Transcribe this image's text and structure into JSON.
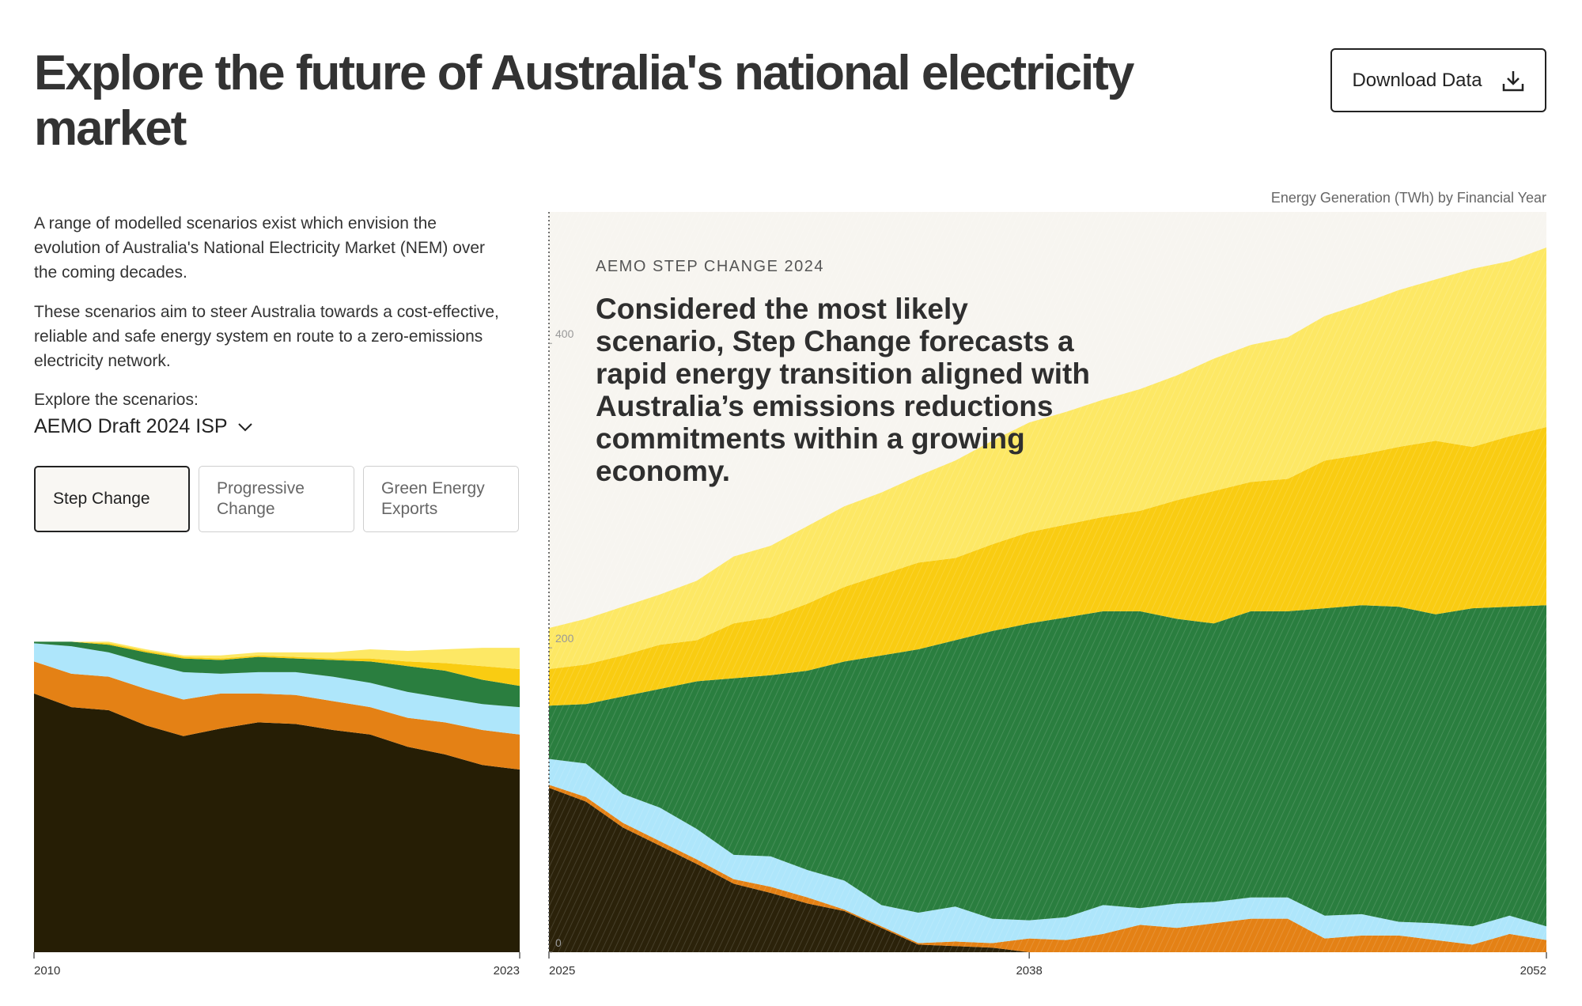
{
  "header": {
    "title": "Explore the future of Australia's national electricity market",
    "button": "Download Data"
  },
  "intro": {
    "paragraphs": [
      "A range of modelled scenarios exist which envision the evolution of Australia's National Electricity Market (NEM) over the coming decades.",
      "These scenarios aim to steer Australia towards a cost-effective, reliable and safe energy system en route to a zero-emissions electricity network."
    ],
    "prompt": "Explore the scenarios:",
    "dropdown": "AEMO Draft 2024 ISP"
  },
  "scenarios": [
    "Step Change",
    "Progressive Change",
    "Green Energy Exports"
  ],
  "chart_data": [
    {
      "type": "stacked_area",
      "x": [
        2010,
        2011,
        2012,
        2013,
        2014,
        2015,
        2016,
        2017,
        2018,
        2019,
        2020,
        2021,
        2022,
        2023
      ],
      "xlim": [
        2010,
        2023
      ],
      "xticks": [
        2010,
        2023
      ],
      "ylim": [
        0,
        490
      ],
      "series": [
        {
          "color": "#261e05",
          "values": [
            170,
            161,
            159,
            149,
            142,
            147,
            151,
            150,
            146,
            143,
            135,
            130,
            123,
            120
          ]
        },
        {
          "color": "#e48115",
          "values": [
            21,
            22,
            22,
            24,
            24,
            23,
            19,
            19,
            19,
            18,
            19,
            21,
            23,
            23
          ]
        },
        {
          "color": "#aee6fb",
          "values": [
            12,
            18,
            16,
            17,
            18,
            13,
            14,
            15,
            16,
            16,
            17,
            16,
            17,
            18
          ]
        },
        {
          "color": "#2a7e3f",
          "values": [
            1,
            3,
            5,
            7,
            9,
            9,
            10,
            9,
            11,
            14,
            17,
            18,
            16,
            14
          ]
        },
        {
          "color": "#f9cc12",
          "values": [
            0,
            0,
            1,
            1,
            1,
            1,
            1,
            1,
            1,
            2,
            3,
            5,
            9,
            11
          ]
        },
        {
          "color": "#fde865",
          "values": [
            0,
            0,
            1,
            1,
            1,
            2,
            2,
            3,
            4,
            6,
            7,
            9,
            12,
            14
          ]
        }
      ]
    },
    {
      "type": "stacked_area",
      "title": "Energy Generation (TWh) by Financial Year",
      "annotation_label": "AEMO STEP CHANGE 2024",
      "annotation": "Considered the most likely scenario, Step Change forecasts a rapid energy transition aligned with Australia’s emissions reductions commitments within a growing economy.",
      "x": [
        2025,
        2026,
        2027,
        2028,
        2029,
        2030,
        2031,
        2032,
        2033,
        2034,
        2035,
        2036,
        2037,
        2038,
        2039,
        2040,
        2041,
        2042,
        2043,
        2044,
        2045,
        2046,
        2047,
        2048,
        2049,
        2050,
        2051,
        2052
      ],
      "xlim": [
        2025,
        2052
      ],
      "xticks": [
        2025,
        2038,
        2052
      ],
      "ylim": [
        0,
        490
      ],
      "yticks": [
        0,
        200,
        400
      ],
      "series": [
        {
          "color": "#2b220a",
          "values": [
            108,
            99,
            82,
            70,
            58,
            45,
            39,
            32,
            27,
            16,
            5,
            4,
            3,
            0,
            0,
            0,
            0,
            0,
            0,
            0,
            0,
            0,
            0,
            0,
            0,
            0,
            0,
            0
          ]
        },
        {
          "color": "#e48115",
          "values": [
            2,
            3,
            3,
            3,
            3,
            3,
            4,
            4,
            1,
            1,
            1,
            3,
            3,
            9,
            8,
            12,
            18,
            16,
            19,
            22,
            22,
            9,
            11,
            11,
            8,
            5,
            12,
            8
          ]
        },
        {
          "color": "#aee6fb",
          "values": [
            17,
            22,
            19,
            22,
            20,
            16,
            20,
            18,
            19,
            14,
            20,
            23,
            16,
            12,
            15,
            19,
            11,
            16,
            14,
            14,
            14,
            15,
            14,
            9,
            11,
            12,
            12,
            9
          ]
        },
        {
          "color": "#2a7e3f",
          "values": [
            35,
            39,
            64,
            78,
            97,
            116,
            119,
            131,
            144,
            164,
            173,
            175,
            189,
            195,
            197,
            193,
            195,
            187,
            183,
            188,
            188,
            202,
            203,
            207,
            203,
            209,
            203,
            211
          ]
        },
        {
          "color": "#f9cc12",
          "values": [
            24,
            26,
            27,
            29,
            27,
            36,
            38,
            44,
            49,
            53,
            57,
            54,
            57,
            60,
            61,
            62,
            66,
            78,
            87,
            85,
            87,
            97,
            99,
            105,
            114,
            106,
            112,
            117
          ]
        },
        {
          "color": "#fde865",
          "values": [
            27,
            30,
            32,
            33,
            39,
            44,
            47,
            51,
            53,
            54,
            57,
            64,
            68,
            72,
            74,
            77,
            80,
            82,
            87,
            90,
            93,
            95,
            99,
            103,
            106,
            117,
            115,
            118
          ]
        }
      ]
    }
  ]
}
